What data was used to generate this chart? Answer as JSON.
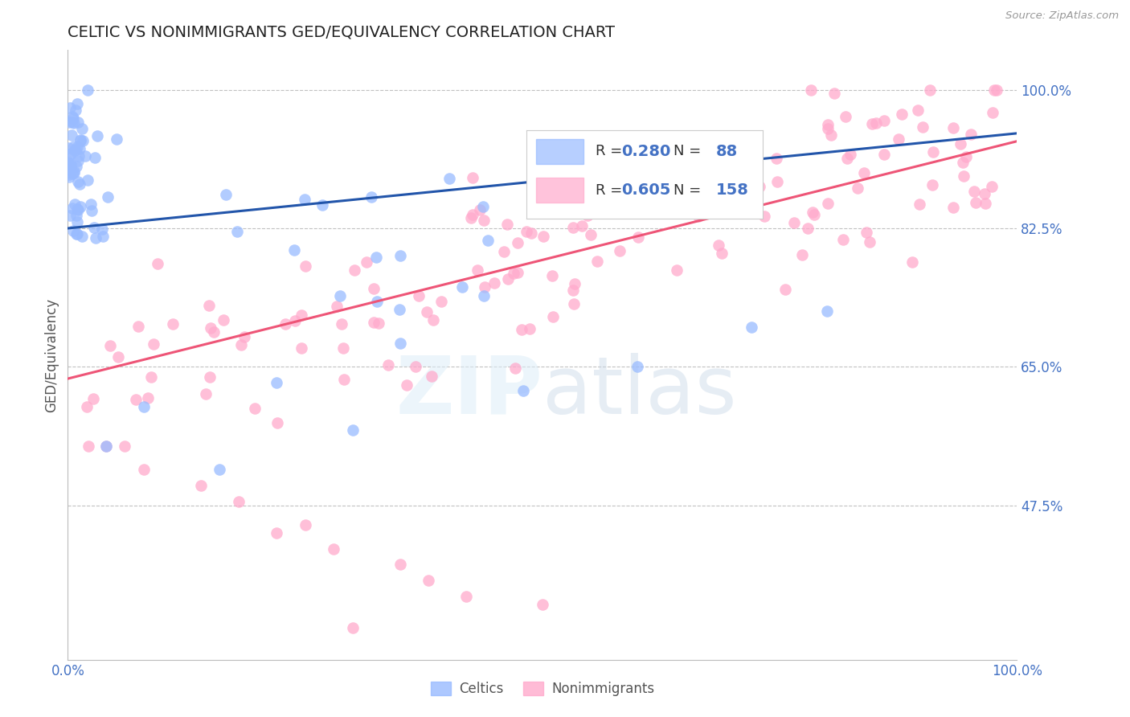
{
  "title": "CELTIC VS NONIMMIGRANTS GED/EQUIVALENCY CORRELATION CHART",
  "source": "Source: ZipAtlas.com",
  "ylabel": "GED/Equivalency",
  "xlim": [
    0.0,
    1.0
  ],
  "ylim": [
    0.28,
    1.05
  ],
  "title_fontsize": 14,
  "axis_label_color": "#4472c4",
  "background_color": "#ffffff",
  "grid_color": "#bbbbbb",
  "celtics_color": "#99bbff",
  "nonimmigrants_color": "#ffaacc",
  "celtics_line_color": "#2255aa",
  "nonimmigrants_line_color": "#ee5577",
  "celtics_R": 0.28,
  "celtics_N": 88,
  "nonimmigrants_R": 0.605,
  "nonimmigrants_N": 158,
  "ytick_values": [
    1.0,
    0.825,
    0.65,
    0.475
  ],
  "yticklabels": [
    "100.0%",
    "82.5%",
    "65.0%",
    "47.5%"
  ],
  "xtick_values": [
    0.0,
    1.0
  ],
  "xticklabels": [
    "0.0%",
    "100.0%"
  ],
  "celtics_trend_x0": 0.0,
  "celtics_trend_y0": 0.825,
  "celtics_trend_x1": 1.0,
  "celtics_trend_y1": 0.945,
  "nonimm_trend_x0": 0.0,
  "nonimm_trend_y0": 0.635,
  "nonimm_trend_x1": 1.0,
  "nonimm_trend_y1": 0.935
}
